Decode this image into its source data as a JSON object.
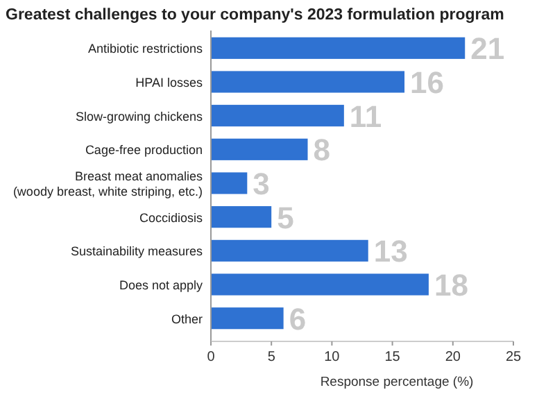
{
  "chart_data": {
    "type": "bar",
    "orientation": "horizontal",
    "title": "Greatest challenges to your company's 2023 formulation program",
    "xlabel": "Response percentage (%)",
    "categories": [
      "Antibiotic restrictions",
      "HPAI losses",
      "Slow-growing chickens",
      "Cage-free production",
      "Breast meat anomalies\n(woody breast, white striping, etc.)",
      "Coccidiosis",
      "Sustainability measures",
      "Does not apply",
      "Other"
    ],
    "values": [
      21,
      16,
      11,
      8,
      3,
      5,
      13,
      18,
      6
    ],
    "color": "#2f72d2",
    "data_labels": true,
    "xlim": [
      0,
      25
    ],
    "xticks": [
      0,
      5,
      10,
      15,
      20,
      25
    ]
  }
}
